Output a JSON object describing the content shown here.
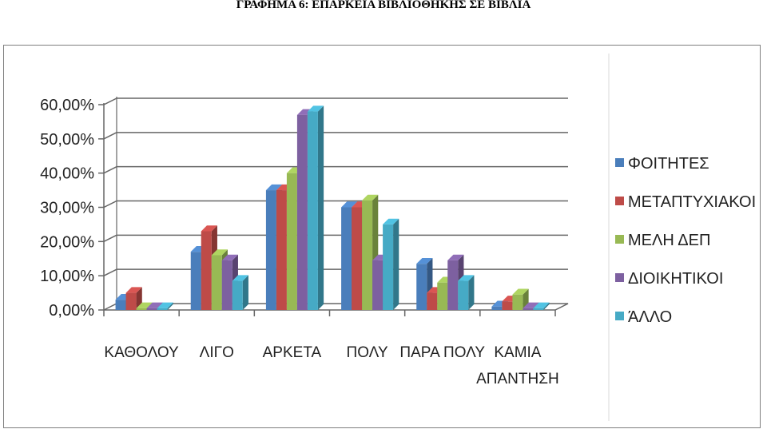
{
  "title": "ΓΡΑΦΗΜΑ 6: ΕΠΑΡΚΕΙΑ ΒΙΒΛΙΟΘΗΚΗΣ ΣΕ ΒΙΒΛΙΑ",
  "chart_data": {
    "type": "bar",
    "title": "",
    "xlabel": "",
    "ylabel": "",
    "ylim": [
      0,
      60
    ],
    "yticks": [
      "0,00%",
      "10,00%",
      "20,00%",
      "30,00%",
      "40,00%",
      "50,00%",
      "60,00%"
    ],
    "categories": [
      [
        "ΚΑΘΟΛΟΥ"
      ],
      [
        "ΛΙΓΟ"
      ],
      [
        "ΑΡΚΕΤΑ"
      ],
      [
        "ΠΟΛΥ"
      ],
      [
        "ΠΑΡΑ ΠΟΛΥ"
      ],
      [
        "ΚΑΜΙΑ",
        "ΑΠΑΝΤΗΣΗ"
      ]
    ],
    "series": [
      {
        "name": "ΦΟΙΤΗΤΕΣ",
        "color": "#4a7ebb",
        "values": [
          3,
          17,
          35,
          30,
          13.5,
          1
        ]
      },
      {
        "name": "ΜΕΤΑΠΤΥΧΙΑΚΟΙ",
        "color": "#be4b48",
        "values": [
          5,
          23,
          35,
          30,
          5,
          2.5
        ]
      },
      {
        "name": "ΜΕΛΗ ΔΕΠ",
        "color": "#98b954",
        "values": [
          0.5,
          16,
          40,
          32,
          8,
          4.5
        ]
      },
      {
        "name": "ΔΙΟΙΚΗΤΙΚΟΙ",
        "color": "#7d60a0",
        "values": [
          0.5,
          14.5,
          57,
          14.5,
          14.5,
          0.5
        ]
      },
      {
        "name": "ΆΛΛΟ",
        "color": "#46aac5",
        "values": [
          0.5,
          8.5,
          58,
          25,
          8.5,
          0.5
        ]
      }
    ],
    "legend_position": "right",
    "grid": true
  }
}
